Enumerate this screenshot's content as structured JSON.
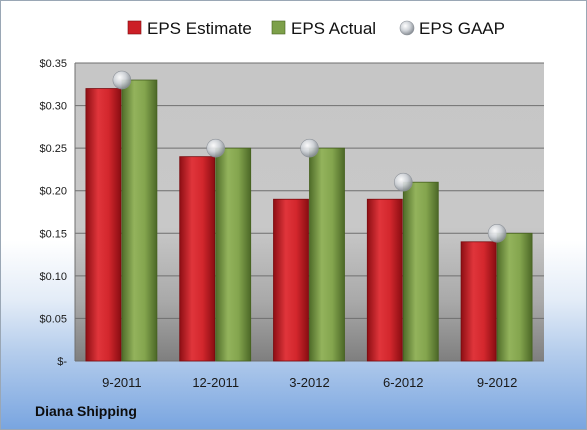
{
  "chart_data": {
    "type": "bar",
    "categories": [
      "9-2011",
      "12-2011",
      "3-2012",
      "6-2012",
      "9-2012"
    ],
    "series": [
      {
        "name": "EPS Estimate",
        "values": [
          0.32,
          0.24,
          0.19,
          0.19,
          0.14
        ],
        "color": "#cc1f26"
      },
      {
        "name": "EPS Actual",
        "values": [
          0.33,
          0.25,
          0.25,
          0.21,
          0.15
        ],
        "color": "#7da04a"
      },
      {
        "name": "EPS GAAP",
        "values": [
          0.33,
          0.25,
          0.25,
          0.21,
          0.15
        ],
        "color": "#c9ced4",
        "marker": "sphere"
      }
    ],
    "ylim": [
      0,
      0.35
    ],
    "yticks": [
      "$-",
      "$0.05",
      "$0.10",
      "$0.15",
      "$0.20",
      "$0.25",
      "$0.30",
      "$0.35"
    ],
    "grid": true,
    "legend": "top"
  },
  "footer": {
    "company": "Diana Shipping"
  }
}
